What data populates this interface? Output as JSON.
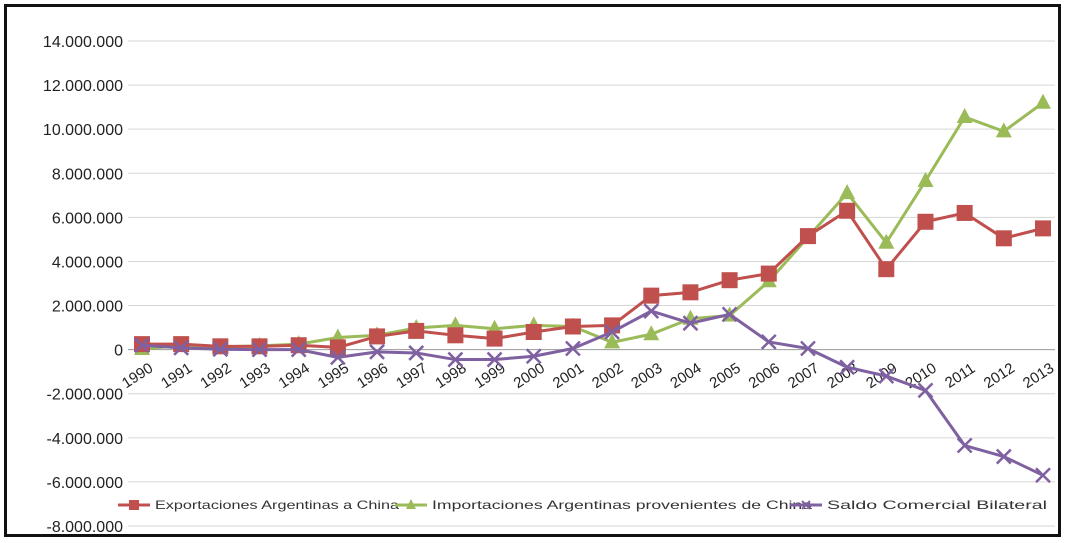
{
  "chart_data": {
    "type": "line",
    "x": [
      "1990",
      "1991",
      "1992",
      "1993",
      "1994",
      "1995",
      "1996",
      "1997",
      "1998",
      "1999",
      "2000",
      "2001",
      "2002",
      "2003",
      "2004",
      "2005",
      "2006",
      "2007",
      "2008",
      "2009",
      "2010",
      "2011",
      "2012",
      "2013"
    ],
    "ylim": [
      -8000000,
      14000000
    ],
    "yticks": [
      {
        "value": 14000000,
        "label": "14.000.000"
      },
      {
        "value": 12000000,
        "label": "12.000.000"
      },
      {
        "value": 10000000,
        "label": "10.000.000"
      },
      {
        "value": 8000000,
        "label": "8.000.000"
      },
      {
        "value": 6000000,
        "label": "6.000.000"
      },
      {
        "value": 4000000,
        "label": "4.000.000"
      },
      {
        "value": 2000000,
        "label": "2.000.000"
      },
      {
        "value": 0,
        "label": "0"
      },
      {
        "value": -2000000,
        "label": "-2.000.000"
      },
      {
        "value": -4000000,
        "label": "-4.000.000"
      },
      {
        "value": -6000000,
        "label": "-6.000.000"
      },
      {
        "value": -8000000,
        "label": "-8.000.000"
      }
    ],
    "grid": true,
    "legend_position": "bottom",
    "series": [
      {
        "name": "Exportaciones Argentinas a China",
        "color": "#c0504d",
        "marker": "square",
        "values": [
          250000,
          250000,
          150000,
          150000,
          200000,
          100000,
          600000,
          850000,
          650000,
          500000,
          800000,
          1050000,
          1100000,
          2450000,
          2600000,
          3150000,
          3450000,
          5150000,
          6300000,
          3650000,
          5800000,
          6200000,
          5050000,
          5500000
        ]
      },
      {
        "name": "Importaciones Argentinas provenientes de China",
        "color": "#9bbb59",
        "marker": "triangle",
        "values": [
          30000,
          180000,
          130000,
          170000,
          250000,
          550000,
          650000,
          980000,
          1100000,
          950000,
          1100000,
          1050000,
          330000,
          700000,
          1400000,
          1550000,
          3100000,
          5100000,
          7100000,
          4850000,
          7650000,
          10550000,
          9900000,
          11200000
        ]
      },
      {
        "name": "Saldo Comercial Bilateral",
        "color": "#7f60a0",
        "marker": "x",
        "values": [
          200000,
          80000,
          20000,
          0,
          0,
          -350000,
          -100000,
          -150000,
          -450000,
          -450000,
          -300000,
          50000,
          800000,
          1750000,
          1200000,
          1600000,
          350000,
          50000,
          -800000,
          -1200000,
          -1850000,
          -4350000,
          -4850000,
          -5700000
        ]
      }
    ]
  }
}
